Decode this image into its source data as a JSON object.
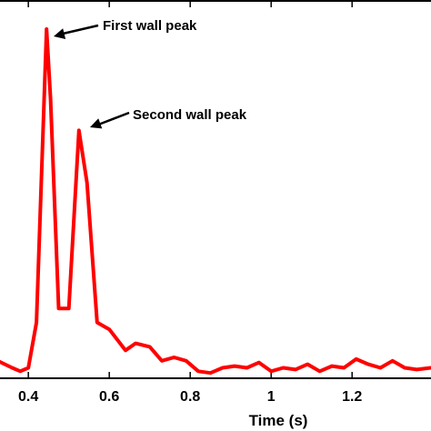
{
  "chart_data": {
    "type": "line",
    "xlabel": "Time (s)",
    "ylabel": "",
    "title": "",
    "xlim": [
      0.33,
      1.395
    ],
    "ylim": [
      0,
      1
    ],
    "x_ticks": [
      0.4,
      0.6,
      0.8,
      1,
      1.2
    ],
    "x_tick_labels": [
      "0.4",
      "0.6",
      "0.8",
      "1",
      "1.2"
    ],
    "grid": false,
    "line_color": "#ff0000",
    "series": [
      {
        "x": [
          0.33,
          0.36,
          0.38,
          0.4,
          0.42,
          0.445,
          0.455,
          0.475,
          0.5,
          0.525,
          0.545,
          0.57,
          0.6,
          0.64,
          0.665,
          0.7,
          0.73,
          0.76,
          0.79,
          0.82,
          0.85,
          0.88,
          0.91,
          0.94,
          0.97,
          1.0,
          1.03,
          1.06,
          1.09,
          1.12,
          1.15,
          1.18,
          1.21,
          1.24,
          1.27,
          1.3,
          1.33,
          1.36,
          1.395
        ],
        "y": [
          0.047,
          0.03,
          0.02,
          0.03,
          0.16,
          1.0,
          0.8,
          0.2,
          0.2,
          0.71,
          0.56,
          0.16,
          0.14,
          0.08,
          0.1,
          0.09,
          0.05,
          0.06,
          0.05,
          0.02,
          0.015,
          0.03,
          0.035,
          0.03,
          0.045,
          0.02,
          0.03,
          0.025,
          0.04,
          0.02,
          0.035,
          0.03,
          0.055,
          0.04,
          0.03,
          0.05,
          0.03,
          0.025,
          0.03
        ]
      }
    ],
    "annotations": [
      {
        "text": "First wall peak",
        "x": 0.445,
        "y": 1.0
      },
      {
        "text": "Second wall peak",
        "x": 0.525,
        "y": 0.71
      }
    ]
  }
}
